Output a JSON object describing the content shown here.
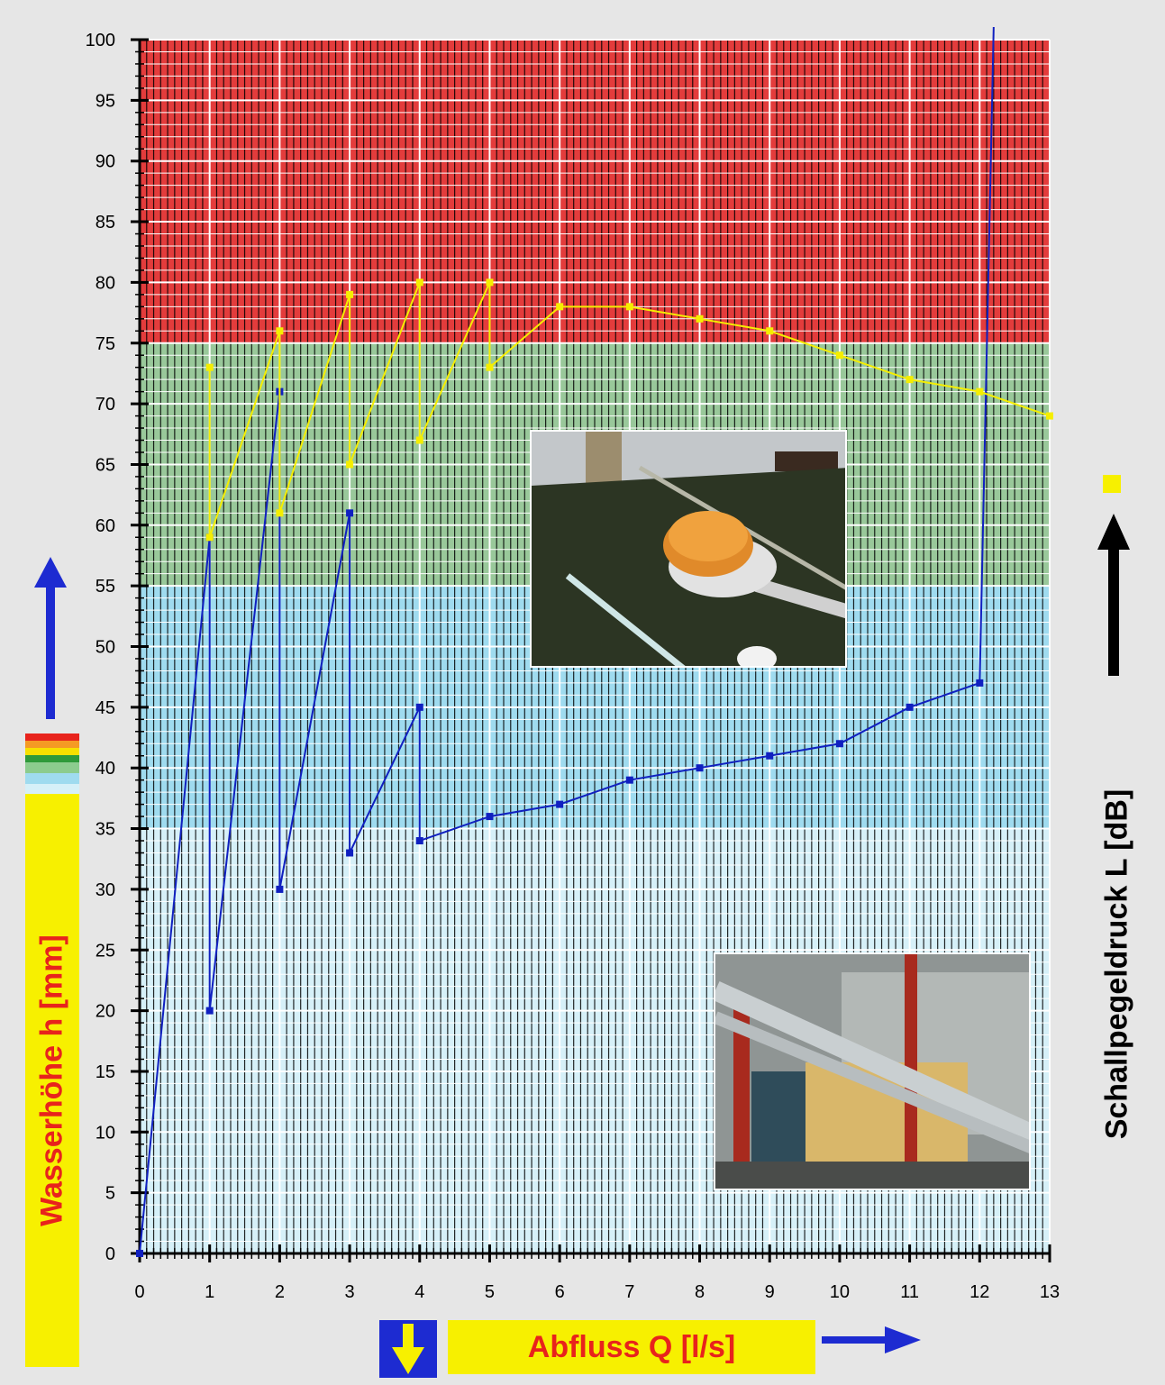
{
  "chart_data": {
    "type": "line",
    "xlabel": "Abfluss Q [l/s]",
    "ylabel": "Wasserhöhe h [mm]",
    "y2label": "Schallpegeldruck L [dB]",
    "xlim": [
      0,
      13
    ],
    "ylim": [
      0,
      100
    ],
    "x_ticks": [
      "0",
      "1",
      "2",
      "3",
      "4",
      "5",
      "6",
      "7",
      "8",
      "9",
      "10",
      "11",
      "12",
      "13"
    ],
    "y_ticks": [
      "0",
      "5",
      "10",
      "15",
      "20",
      "25",
      "30",
      "35",
      "40",
      "45",
      "50",
      "55",
      "60",
      "65",
      "70",
      "75",
      "80",
      "85",
      "90",
      "95",
      "100"
    ],
    "grid": true,
    "bands": [
      {
        "from": 75,
        "to": 100,
        "color": "#e33c3c"
      },
      {
        "from": 55,
        "to": 75,
        "color": "#99c89a"
      },
      {
        "from": 35,
        "to": 55,
        "color": "#9fdbef"
      },
      {
        "from": 0,
        "to": 35,
        "color": "#d6f0f8"
      }
    ],
    "series": [
      {
        "color": "#1020c0",
        "marker": "square",
        "points": [
          [
            0,
            0
          ],
          [
            1,
            59
          ],
          [
            1,
            20
          ],
          [
            2,
            71
          ],
          [
            2,
            30
          ],
          [
            3,
            61
          ],
          [
            3,
            33
          ],
          [
            4,
            45
          ],
          [
            4,
            34
          ],
          [
            5,
            36
          ],
          [
            6,
            37
          ],
          [
            7,
            39
          ],
          [
            8,
            40
          ],
          [
            9,
            41
          ],
          [
            10,
            42
          ],
          [
            11,
            45
          ],
          [
            12,
            47
          ],
          [
            12.2,
            105
          ]
        ]
      },
      {
        "color": "#f5ee00",
        "marker": "square",
        "points": [
          [
            1,
            73
          ],
          [
            1,
            59
          ],
          [
            2,
            76
          ],
          [
            2,
            61
          ],
          [
            3,
            79
          ],
          [
            3,
            65
          ],
          [
            4,
            80
          ],
          [
            4,
            67
          ],
          [
            5,
            80
          ],
          [
            5,
            73
          ],
          [
            6,
            78
          ],
          [
            7,
            78
          ],
          [
            8,
            77
          ],
          [
            9,
            76
          ],
          [
            10,
            74
          ],
          [
            11,
            72
          ],
          [
            12,
            71
          ],
          [
            13,
            69
          ]
        ]
      }
    ]
  },
  "legend_colors": [
    "#e8231c",
    "#f59a24",
    "#f7e000",
    "#2f9a3a",
    "#8ccc8e",
    "#9fdbef",
    "#d6f0f8"
  ],
  "icons": {
    "up_arrow": "blue-up-arrow-icon",
    "right_arrow": "blue-right-arrow-icon",
    "down_arrow": "yellow-down-arrow-icon",
    "y2_arrow": "black-up-arrow-icon",
    "y2_marker": "yellow-square-marker-icon"
  }
}
